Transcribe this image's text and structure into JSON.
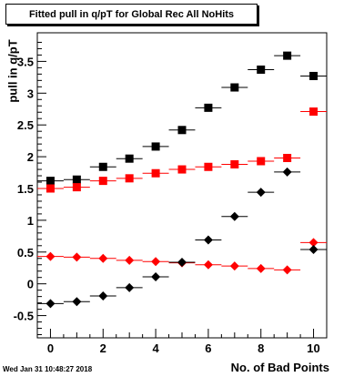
{
  "chart_data": {
    "type": "scatter",
    "title": "Fitted pull in q/pT for Global Rec All NoHits",
    "xlabel": "No. of Bad Points",
    "ylabel": "pull in q/pT",
    "xlim": [
      -0.5,
      10.5
    ],
    "ylim": [
      -0.85,
      3.95
    ],
    "xticks": [
      0,
      2,
      4,
      6,
      8,
      10
    ],
    "yticks": [
      -0.5,
      0,
      0.5,
      1,
      1.5,
      2,
      2.5,
      3,
      3.5
    ],
    "ytick_labels": [
      "-0.5",
      "0",
      "0.5",
      "1",
      "1.5",
      "2",
      "2.5",
      "3",
      "3.5"
    ],
    "grid": false,
    "x_error_half_width": 0.5,
    "series": [
      {
        "color": "#000000",
        "marker": "square",
        "x": [
          0,
          1,
          2,
          3,
          4,
          5,
          6,
          7,
          8,
          9,
          10
        ],
        "y": [
          1.62,
          1.64,
          1.84,
          1.97,
          2.16,
          2.42,
          2.77,
          3.09,
          3.37,
          3.59,
          3.27
        ]
      },
      {
        "color": "#ff0000",
        "marker": "square",
        "x": [
          0,
          1,
          2,
          3,
          4,
          5,
          6,
          7,
          8,
          9,
          10
        ],
        "y": [
          1.5,
          1.52,
          1.62,
          1.66,
          1.74,
          1.8,
          1.84,
          1.88,
          1.93,
          1.98,
          2.71
        ]
      },
      {
        "color": "#ff0000",
        "marker": "diamond",
        "x": [
          0,
          1,
          2,
          3,
          4,
          5,
          6,
          7,
          8,
          9,
          10
        ],
        "y": [
          0.43,
          0.42,
          0.4,
          0.37,
          0.35,
          0.33,
          0.3,
          0.28,
          0.24,
          0.22,
          0.65
        ]
      },
      {
        "color": "#000000",
        "marker": "diamond",
        "x": [
          0,
          1,
          2,
          3,
          4,
          5,
          6,
          7,
          8,
          9,
          10
        ],
        "y": [
          -0.31,
          -0.28,
          -0.19,
          -0.06,
          0.11,
          0.34,
          0.69,
          1.06,
          1.44,
          1.76,
          0.54
        ]
      }
    ]
  },
  "footer": {
    "timestamp": "Wed Jan 31 10:48:27 2018"
  }
}
